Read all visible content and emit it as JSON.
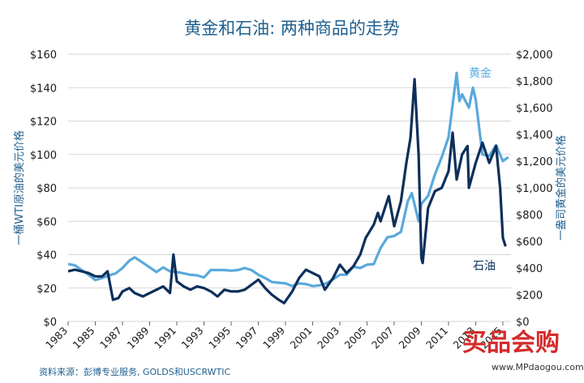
{
  "chart_data": {
    "type": "line",
    "title": "黄金和石油: 两种商品的走势",
    "ylabel_left": "一桶WTI原油的美元价格",
    "ylabel_right": "一盎司黄金的美元价格",
    "ylim_left": [
      0,
      160
    ],
    "ylim_right": [
      0,
      2000
    ],
    "yticks_left": [
      "$0",
      "$20",
      "$40",
      "$60",
      "$80",
      "$100",
      "$120",
      "$140",
      "$160"
    ],
    "yticks_right": [
      "$0",
      "$200",
      "$400",
      "$600",
      "$800",
      "$1,000",
      "$1,200",
      "$1,400",
      "$1,600",
      "$1,800",
      "$2,000"
    ],
    "x_range": [
      1983,
      2015.6
    ],
    "xticks": [
      "1983",
      "1985",
      "1987",
      "1989",
      "1991",
      "1993",
      "1995",
      "1997",
      "1999",
      "2001",
      "2003",
      "2005",
      "2007",
      "2009",
      "2011",
      "2013",
      "2015"
    ],
    "grid": true,
    "series": [
      {
        "name": "黄金",
        "axis": "right",
        "color": "#5aa9dc",
        "points": [
          [
            1983.0,
            430
          ],
          [
            1983.5,
            420
          ],
          [
            1984.0,
            385
          ],
          [
            1984.5,
            350
          ],
          [
            1985.0,
            310
          ],
          [
            1985.5,
            325
          ],
          [
            1986.0,
            345
          ],
          [
            1986.5,
            360
          ],
          [
            1987.0,
            400
          ],
          [
            1987.5,
            455
          ],
          [
            1987.9,
            480
          ],
          [
            1988.5,
            440
          ],
          [
            1989.0,
            405
          ],
          [
            1989.5,
            370
          ],
          [
            1990.0,
            405
          ],
          [
            1990.5,
            375
          ],
          [
            1991.0,
            370
          ],
          [
            1991.5,
            360
          ],
          [
            1992.0,
            350
          ],
          [
            1992.5,
            345
          ],
          [
            1993.0,
            330
          ],
          [
            1993.5,
            385
          ],
          [
            1994.0,
            385
          ],
          [
            1994.5,
            385
          ],
          [
            1995.0,
            380
          ],
          [
            1995.5,
            385
          ],
          [
            1996.0,
            400
          ],
          [
            1996.5,
            385
          ],
          [
            1997.0,
            350
          ],
          [
            1997.5,
            325
          ],
          [
            1998.0,
            295
          ],
          [
            1998.5,
            290
          ],
          [
            1999.0,
            285
          ],
          [
            1999.5,
            265
          ],
          [
            2000.0,
            285
          ],
          [
            2000.5,
            280
          ],
          [
            2001.0,
            265
          ],
          [
            2001.5,
            270
          ],
          [
            2002.0,
            285
          ],
          [
            2002.5,
            315
          ],
          [
            2003.0,
            350
          ],
          [
            2003.5,
            350
          ],
          [
            2004.0,
            410
          ],
          [
            2004.5,
            400
          ],
          [
            2005.0,
            425
          ],
          [
            2005.5,
            430
          ],
          [
            2006.0,
            550
          ],
          [
            2006.5,
            630
          ],
          [
            2007.0,
            640
          ],
          [
            2007.5,
            670
          ],
          [
            2008.0,
            900
          ],
          [
            2008.3,
            960
          ],
          [
            2008.8,
            750
          ],
          [
            2009.0,
            880
          ],
          [
            2009.5,
            940
          ],
          [
            2010.0,
            1100
          ],
          [
            2010.5,
            1230
          ],
          [
            2011.0,
            1380
          ],
          [
            2011.6,
            1860
          ],
          [
            2011.8,
            1650
          ],
          [
            2012.0,
            1700
          ],
          [
            2012.5,
            1600
          ],
          [
            2012.8,
            1750
          ],
          [
            2013.0,
            1660
          ],
          [
            2013.5,
            1250
          ],
          [
            2014.0,
            1240
          ],
          [
            2014.5,
            1320
          ],
          [
            2015.0,
            1200
          ],
          [
            2015.4,
            1230
          ]
        ]
      },
      {
        "name": "石油",
        "axis": "left",
        "color": "#0d2f5a",
        "points": [
          [
            1983.0,
            30
          ],
          [
            1983.5,
            31
          ],
          [
            1984.0,
            30
          ],
          [
            1984.5,
            29
          ],
          [
            1985.0,
            27
          ],
          [
            1985.5,
            27
          ],
          [
            1985.9,
            30
          ],
          [
            1986.3,
            13
          ],
          [
            1986.7,
            14
          ],
          [
            1987.0,
            18
          ],
          [
            1987.5,
            20
          ],
          [
            1987.9,
            17
          ],
          [
            1988.5,
            15
          ],
          [
            1989.0,
            17
          ],
          [
            1989.5,
            19
          ],
          [
            1990.0,
            21
          ],
          [
            1990.5,
            17
          ],
          [
            1990.75,
            40
          ],
          [
            1991.0,
            24
          ],
          [
            1991.5,
            21
          ],
          [
            1992.0,
            19
          ],
          [
            1992.5,
            21
          ],
          [
            1993.0,
            20
          ],
          [
            1993.5,
            18
          ],
          [
            1994.0,
            15
          ],
          [
            1994.5,
            19
          ],
          [
            1995.0,
            18
          ],
          [
            1995.5,
            18
          ],
          [
            1996.0,
            19
          ],
          [
            1996.5,
            22
          ],
          [
            1997.0,
            25
          ],
          [
            1997.5,
            20
          ],
          [
            1998.0,
            16
          ],
          [
            1998.5,
            13
          ],
          [
            1998.9,
            11
          ],
          [
            1999.5,
            18
          ],
          [
            2000.0,
            26
          ],
          [
            2000.5,
            31
          ],
          [
            2001.0,
            29
          ],
          [
            2001.5,
            27
          ],
          [
            2001.9,
            19
          ],
          [
            2002.5,
            26
          ],
          [
            2003.0,
            34
          ],
          [
            2003.5,
            29
          ],
          [
            2004.0,
            33
          ],
          [
            2004.5,
            40
          ],
          [
            2004.9,
            50
          ],
          [
            2005.5,
            58
          ],
          [
            2005.8,
            65
          ],
          [
            2006.0,
            60
          ],
          [
            2006.6,
            75
          ],
          [
            2007.0,
            57
          ],
          [
            2007.5,
            72
          ],
          [
            2007.9,
            95
          ],
          [
            2008.2,
            110
          ],
          [
            2008.5,
            145
          ],
          [
            2008.8,
            100
          ],
          [
            2009.0,
            38
          ],
          [
            2009.1,
            35
          ],
          [
            2009.5,
            68
          ],
          [
            2010.0,
            78
          ],
          [
            2010.5,
            80
          ],
          [
            2011.0,
            90
          ],
          [
            2011.3,
            113
          ],
          [
            2011.6,
            85
          ],
          [
            2012.0,
            100
          ],
          [
            2012.4,
            105
          ],
          [
            2012.5,
            80
          ],
          [
            2013.0,
            95
          ],
          [
            2013.5,
            107
          ],
          [
            2014.0,
            95
          ],
          [
            2014.5,
            105
          ],
          [
            2014.8,
            80
          ],
          [
            2015.0,
            50
          ],
          [
            2015.2,
            45
          ]
        ]
      }
    ]
  },
  "labels": {
    "gold": "黄金",
    "oil": "石油"
  },
  "source": "资料来源：彭博专业服务, GOLDS和USCRWTIC",
  "watermark": {
    "brand": "买品会购",
    "url": "www.MPdaogou.com"
  }
}
